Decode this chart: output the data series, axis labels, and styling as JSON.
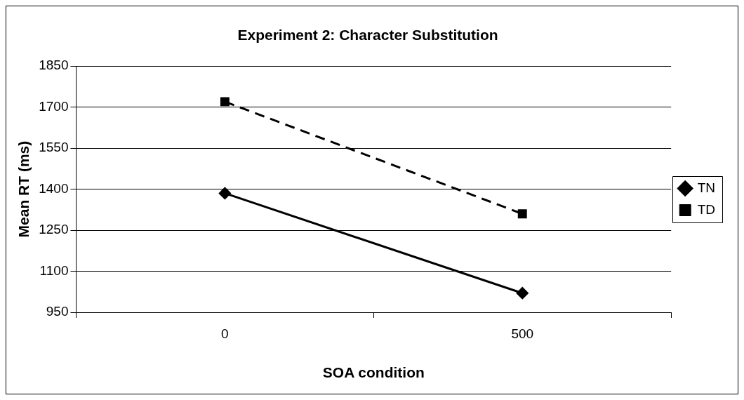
{
  "chart_data": {
    "type": "line",
    "title": "Experiment 2: Character Substitution",
    "xlabel": "SOA condition",
    "ylabel": "Mean RT (ms)",
    "categories": [
      "0",
      "500"
    ],
    "series": [
      {
        "name": "TN",
        "color": "#000000",
        "values": [
          1385,
          1020
        ],
        "marker": "diamond",
        "line_style": "solid"
      },
      {
        "name": "TD",
        "color": "#000000",
        "values": [
          1720,
          1310
        ],
        "marker": "square",
        "line_style": "dashed"
      }
    ],
    "ylim": [
      950,
      1850
    ],
    "yticks": [
      950,
      1100,
      1250,
      1400,
      1550,
      1700,
      1850
    ],
    "grid": "y",
    "legend": "right"
  }
}
